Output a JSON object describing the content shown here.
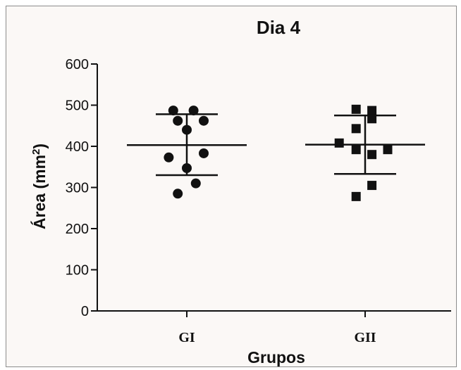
{
  "chart_data": {
    "type": "scatter",
    "title": "Dia 4",
    "xlabel": "Grupos",
    "ylabel_main": "Área (mm",
    "ylabel_sup": "2",
    "ylabel_end": ")",
    "categories": [
      "GI",
      "GII"
    ],
    "ylim": [
      0,
      600
    ],
    "yticks": [
      0,
      100,
      200,
      300,
      400,
      500,
      600
    ],
    "grid": false,
    "series": [
      {
        "category": "GI",
        "marker": "circle",
        "points": [
          {
            "dx": -0.12,
            "y": 487
          },
          {
            "dx": 0.06,
            "y": 487
          },
          {
            "dx": -0.08,
            "y": 462
          },
          {
            "dx": 0.15,
            "y": 462
          },
          {
            "dx": 0.0,
            "y": 440
          },
          {
            "dx": -0.16,
            "y": 373
          },
          {
            "dx": 0.15,
            "y": 383
          },
          {
            "dx": 0.0,
            "y": 347
          },
          {
            "dx": 0.08,
            "y": 310
          },
          {
            "dx": -0.08,
            "y": 285
          }
        ],
        "mean": 403,
        "sd_upper": 478,
        "sd_lower": 330
      },
      {
        "category": "GII",
        "marker": "square",
        "points": [
          {
            "dx": -0.08,
            "y": 490
          },
          {
            "dx": 0.06,
            "y": 487
          },
          {
            "dx": 0.06,
            "y": 467
          },
          {
            "dx": -0.08,
            "y": 443
          },
          {
            "dx": -0.23,
            "y": 408
          },
          {
            "dx": -0.08,
            "y": 392
          },
          {
            "dx": 0.06,
            "y": 380
          },
          {
            "dx": 0.2,
            "y": 392
          },
          {
            "dx": 0.06,
            "y": 305
          },
          {
            "dx": -0.08,
            "y": 278
          }
        ],
        "mean": 404,
        "sd_upper": 475,
        "sd_lower": 333
      }
    ]
  }
}
